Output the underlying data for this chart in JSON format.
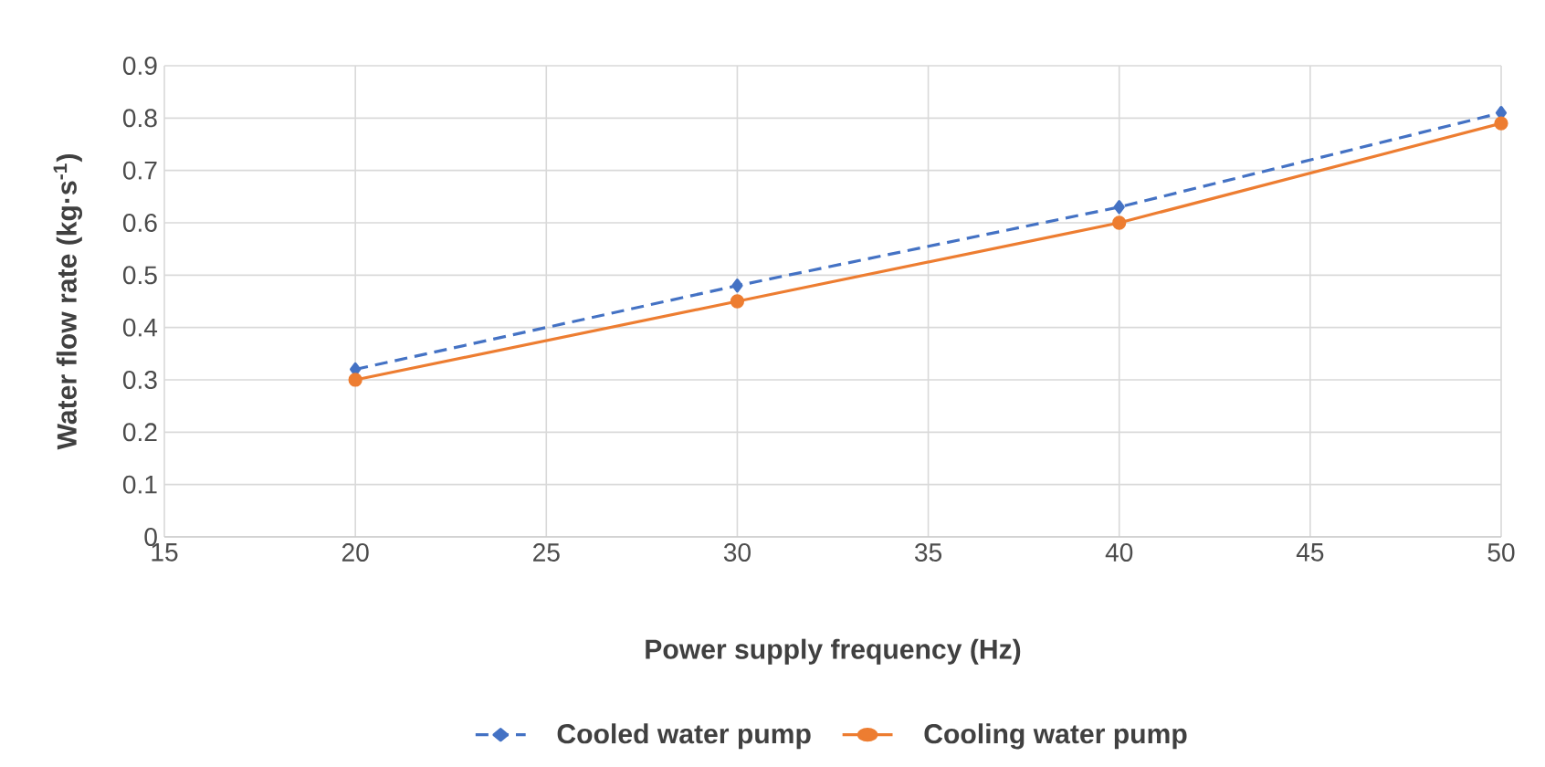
{
  "chart_data": {
    "type": "line",
    "xlabel": "Power supply frequency (Hz)",
    "ylabel": "Water flow rate (kg·s$^{-1}$)",
    "x": [
      20,
      30,
      40,
      50
    ],
    "series": [
      {
        "name": "Cooled water pump",
        "color": "#4472c4",
        "values": [
          0.32,
          0.48,
          0.63,
          0.81
        ],
        "marker": "diamond",
        "line_style": "dashed"
      },
      {
        "name": "Cooling water pump",
        "color": "#ed7d31",
        "values": [
          0.3,
          0.45,
          0.6,
          0.79
        ],
        "marker": "circle",
        "line_style": "solid"
      }
    ],
    "xlim": [
      15,
      50
    ],
    "xticks": [
      15,
      20,
      25,
      30,
      35,
      40,
      45,
      50
    ],
    "ylim": [
      0,
      0.9
    ],
    "yticks": [
      0,
      0.1,
      0.2,
      0.3,
      0.4,
      0.5,
      0.6,
      0.7,
      0.8,
      0.9
    ],
    "grid": true,
    "legend": "bottom"
  }
}
